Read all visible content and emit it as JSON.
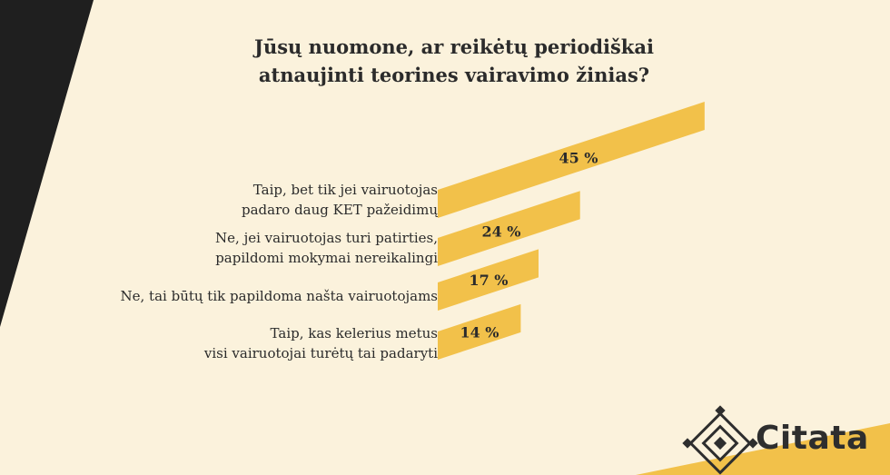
{
  "title_lines": [
    "Jūsų nuomone, ar reikėtų periodiškai",
    "atnaujinti teorines vairavimo žinias?"
  ],
  "brand": {
    "name": "Citata"
  },
  "colors": {
    "background": "#fbf2dc",
    "bar": "#f2c14a",
    "dark_band": "#1f1f1f",
    "accent_band": "#f2c14a"
  },
  "chart_data": {
    "type": "bar",
    "orientation": "horizontal",
    "categories": [
      "Taip, bet tik jei vairuotojas padaro daug KET pažeidimų",
      "Ne, jei vairuotojas turi patirties, papildomi mokymai nereikalingi",
      "Ne, tai būtų tik papildoma našta vairuotojams",
      "Taip, kas kelerius metus visi vairuotojai turėtų tai padaryti"
    ],
    "category_label_lines": [
      [
        "Taip, bet tik jei vairuotojas",
        "padaro daug KET pažeidimų"
      ],
      [
        "Ne, jei vairuotojas turi patirties,",
        "papildomi mokymai nereikalingi"
      ],
      [
        "Ne, tai būtų tik papildoma našta vairuotojams"
      ],
      [
        "Taip, kas kelerius metus",
        "visi vairuotojai turėtų tai padaryti"
      ]
    ],
    "values": [
      45,
      24,
      17,
      14
    ],
    "value_labels": [
      "45 %",
      "24 %",
      "17 %",
      "14 %"
    ],
    "unit": "%",
    "legend": "none",
    "grid": false
  }
}
